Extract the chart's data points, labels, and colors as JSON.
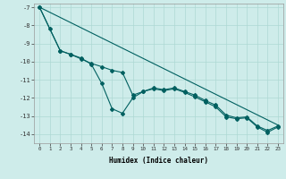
{
  "xlabel": "Humidex (Indice chaleur)",
  "background_color": "#ceecea",
  "grid_color": "#aed8d4",
  "line_color": "#006060",
  "xlim": [
    -0.5,
    23.5
  ],
  "ylim": [
    -14.5,
    -6.8
  ],
  "xticks": [
    0,
    1,
    2,
    3,
    4,
    5,
    6,
    7,
    8,
    9,
    10,
    11,
    12,
    13,
    14,
    15,
    16,
    17,
    18,
    19,
    20,
    21,
    22,
    23
  ],
  "yticks": [
    -14,
    -13,
    -12,
    -11,
    -10,
    -9,
    -8,
    -7
  ],
  "line1_x": [
    0,
    1,
    2,
    3,
    4,
    5,
    6,
    7,
    8,
    9,
    10,
    11,
    12,
    13,
    14,
    15,
    16,
    17,
    18,
    19,
    20,
    21,
    22,
    23
  ],
  "line1_y": [
    -7.0,
    -8.2,
    -9.4,
    -9.6,
    -9.8,
    -10.15,
    -11.2,
    -12.6,
    -12.85,
    -12.0,
    -11.65,
    -11.45,
    -11.55,
    -11.45,
    -11.65,
    -11.85,
    -12.15,
    -12.4,
    -12.95,
    -13.1,
    -13.05,
    -13.55,
    -13.8,
    -13.55
  ],
  "line2_x": [
    0,
    2,
    3,
    4,
    5,
    6,
    7,
    8,
    9,
    10,
    11,
    12,
    13,
    14,
    15,
    16,
    17,
    18,
    19,
    20,
    21,
    22,
    23
  ],
  "line2_y": [
    -7.0,
    -9.4,
    -9.6,
    -9.85,
    -10.1,
    -10.28,
    -10.48,
    -10.6,
    -11.85,
    -11.65,
    -11.5,
    -11.6,
    -11.5,
    -11.7,
    -11.95,
    -12.22,
    -12.5,
    -13.05,
    -13.15,
    -13.1,
    -13.6,
    -13.9,
    -13.6
  ],
  "line3_x": [
    0,
    23
  ],
  "line3_y": [
    -7.0,
    -13.5
  ]
}
